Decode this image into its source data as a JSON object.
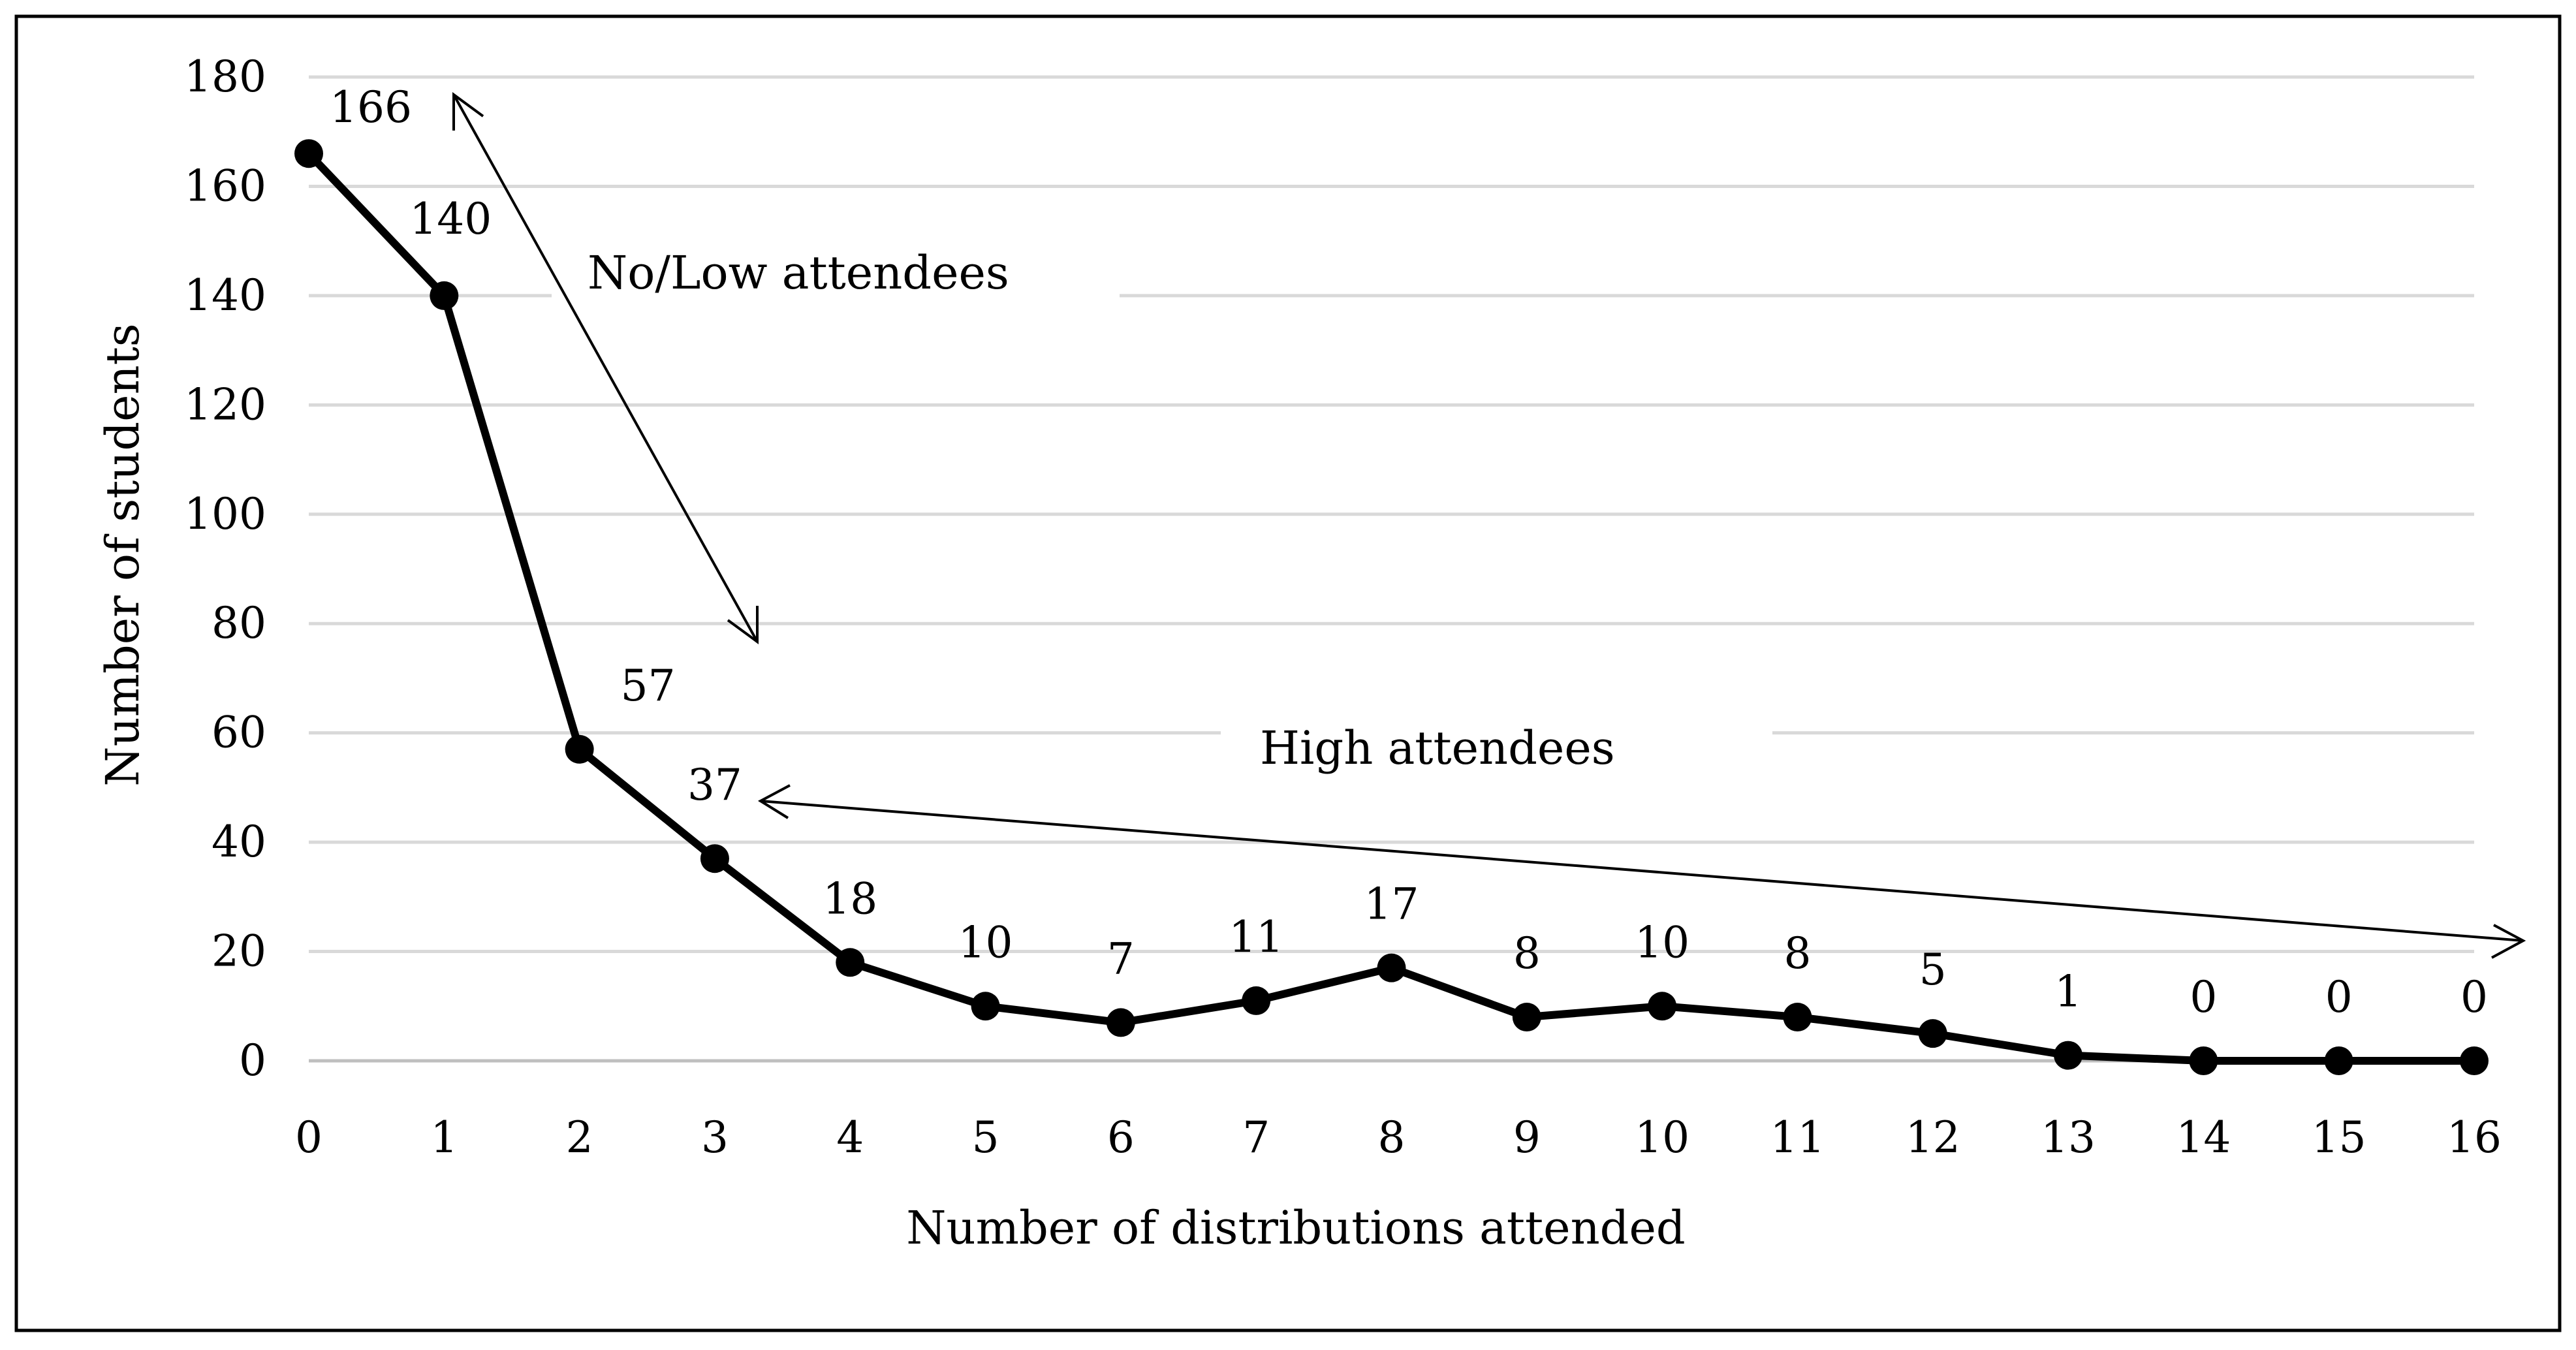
{
  "chart_data": {
    "type": "line",
    "title": "",
    "xlabel": "Number of distributions attended",
    "ylabel": "Number of students",
    "x": [
      0,
      1,
      2,
      3,
      4,
      5,
      6,
      7,
      8,
      9,
      10,
      11,
      12,
      13,
      14,
      15,
      16
    ],
    "x_tick_labels": [
      "0",
      "1",
      "2",
      "3",
      "4",
      "5",
      "6",
      "7",
      "8",
      "9",
      "10",
      "11",
      "12",
      "13",
      "14",
      "15",
      "16"
    ],
    "series": [
      {
        "name": "Number of students",
        "values": [
          166,
          140,
          57,
          37,
          18,
          10,
          7,
          11,
          17,
          8,
          10,
          8,
          5,
          1,
          0,
          0,
          0
        ],
        "data_labels": [
          "166",
          "140",
          "57",
          "37",
          "18",
          "10",
          "7",
          "11",
          "17",
          "8",
          "10",
          "8",
          "5",
          "1",
          "0",
          "0",
          "0"
        ],
        "color": "#000000"
      }
    ],
    "y_tick_labels": [
      "0",
      "20",
      "40",
      "60",
      "80",
      "100",
      "120",
      "140",
      "160",
      "180"
    ],
    "ylim": [
      0,
      180
    ],
    "xlim": [
      0,
      16
    ],
    "grid": true,
    "annotations": [
      {
        "text": "No/Low attendees"
      },
      {
        "text": "High attendees"
      }
    ],
    "colors": {
      "line": "#000000",
      "gridline": "#d9d9d9",
      "frame": "#000000",
      "background": "#ffffff"
    }
  }
}
